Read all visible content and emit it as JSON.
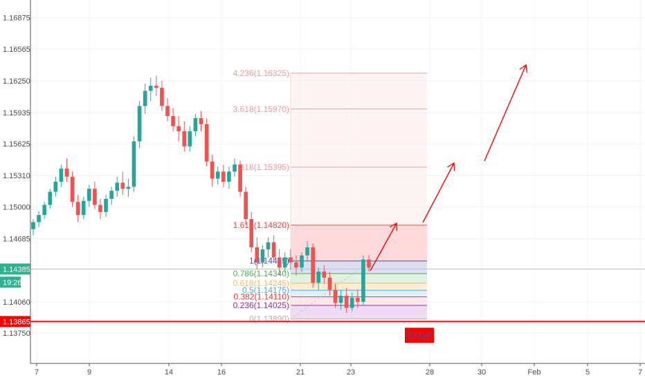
{
  "chart_data": {
    "type": "candlestick",
    "y_ticks": [
      "1.16875",
      "1.16565",
      "1.16250",
      "1.15935",
      "1.15625",
      "1.15310",
      "1.15000",
      "1.14685",
      "1.14385",
      "1.14060",
      "1.13865",
      "1.13750"
    ],
    "ylim": [
      1.1345,
      1.1705
    ],
    "x_ticks": [
      "7",
      "9",
      "14",
      "16",
      "21",
      "23",
      "28",
      "30",
      "Feb",
      "5",
      "7"
    ],
    "price_tag": {
      "value": "1.14385",
      "timer": "19:26",
      "color": "#2fb090"
    },
    "stop_line": {
      "value": "1.13865",
      "color": "#ff0000"
    },
    "stop_label": "STOP",
    "fib_levels": [
      {
        "ratio": 0,
        "price": 1.1389,
        "label": "0(1.13890)",
        "color": "#b0b0b0"
      },
      {
        "ratio": 0.236,
        "price": 1.14025,
        "label": "0.236(1.14025)",
        "color": "#9c27b0"
      },
      {
        "ratio": 0.382,
        "price": 1.1411,
        "label": "0.382(1.14110)",
        "color": "#e53935"
      },
      {
        "ratio": 0.5,
        "price": 1.14175,
        "label": "0.5(1.14175)",
        "color": "#42a5f5"
      },
      {
        "ratio": 0.618,
        "price": 1.14245,
        "label": "0.618(1.14245)",
        "color": "#ffb74d"
      },
      {
        "ratio": 0.786,
        "price": 1.1434,
        "label": "0.786(1.14340)",
        "color": "#4caf50"
      },
      {
        "ratio": 1,
        "price": 1.14465,
        "label": "1(1.14465)",
        "color": "#3f51b5"
      },
      {
        "ratio": 1.618,
        "price": 1.1482,
        "label": "1.618(1.14820)",
        "color": "#f44336"
      },
      {
        "ratio": 2.618,
        "price": 1.15395,
        "label": "2.618(1.15395)",
        "color": "#ef9a9a"
      },
      {
        "ratio": 3.618,
        "price": 1.1597,
        "label": "3.618(1.15970)",
        "color": "#ef9a9a"
      },
      {
        "ratio": 4.236,
        "price": 1.16325,
        "label": "4.236(1.16325)",
        "color": "#ef9a9a"
      }
    ],
    "candles": [
      [
        1.1478,
        1.1488,
        1.1472,
        1.1485
      ],
      [
        1.1485,
        1.1496,
        1.148,
        1.1492
      ],
      [
        1.1492,
        1.1505,
        1.1488,
        1.1502
      ],
      [
        1.1502,
        1.1518,
        1.1498,
        1.1515
      ],
      [
        1.1515,
        1.153,
        1.151,
        1.1525
      ],
      [
        1.1525,
        1.1542,
        1.152,
        1.1538
      ],
      [
        1.1538,
        1.1548,
        1.1525,
        1.153
      ],
      [
        1.153,
        1.1535,
        1.15,
        1.1505
      ],
      [
        1.1505,
        1.1512,
        1.1485,
        1.1492
      ],
      [
        1.1492,
        1.151,
        1.1488,
        1.1506
      ],
      [
        1.1506,
        1.1522,
        1.15,
        1.1518
      ],
      [
        1.1518,
        1.1525,
        1.1498,
        1.1502
      ],
      [
        1.1502,
        1.1508,
        1.1488,
        1.1495
      ],
      [
        1.1495,
        1.1512,
        1.149,
        1.1508
      ],
      [
        1.1508,
        1.152,
        1.1502,
        1.1516
      ],
      [
        1.1516,
        1.153,
        1.151,
        1.1524
      ],
      [
        1.1524,
        1.1535,
        1.1512,
        1.1518
      ],
      [
        1.1518,
        1.1528,
        1.151,
        1.152
      ],
      [
        1.152,
        1.157,
        1.1515,
        1.1565
      ],
      [
        1.1565,
        1.1605,
        1.1558,
        1.16
      ],
      [
        1.16,
        1.1622,
        1.1592,
        1.1615
      ],
      [
        1.1615,
        1.1628,
        1.1605,
        1.162
      ],
      [
        1.162,
        1.163,
        1.161,
        1.1618
      ],
      [
        1.1618,
        1.1625,
        1.1595,
        1.16
      ],
      [
        1.16,
        1.1608,
        1.1585,
        1.159
      ],
      [
        1.159,
        1.1598,
        1.1575,
        1.158
      ],
      [
        1.158,
        1.159,
        1.1565,
        1.1575
      ],
      [
        1.1575,
        1.1585,
        1.1555,
        1.156
      ],
      [
        1.156,
        1.158,
        1.1555,
        1.1575
      ],
      [
        1.1575,
        1.1592,
        1.157,
        1.1588
      ],
      [
        1.1588,
        1.1595,
        1.1575,
        1.1582
      ],
      [
        1.1582,
        1.1588,
        1.154,
        1.1545
      ],
      [
        1.1545,
        1.1552,
        1.152,
        1.1528
      ],
      [
        1.1528,
        1.154,
        1.1522,
        1.1535
      ],
      [
        1.1535,
        1.1542,
        1.152,
        1.1525
      ],
      [
        1.1525,
        1.154,
        1.1518,
        1.1535
      ],
      [
        1.1535,
        1.1548,
        1.153,
        1.1542
      ],
      [
        1.1542,
        1.1546,
        1.151,
        1.1515
      ],
      [
        1.1515,
        1.152,
        1.1482,
        1.1488
      ],
      [
        1.1488,
        1.1495,
        1.1455,
        1.146
      ],
      [
        1.146,
        1.147,
        1.1438,
        1.1445
      ],
      [
        1.1445,
        1.1462,
        1.144,
        1.1458
      ],
      [
        1.1458,
        1.147,
        1.145,
        1.1465
      ],
      [
        1.1465,
        1.1472,
        1.1445,
        1.145
      ],
      [
        1.145,
        1.1458,
        1.1432,
        1.144
      ],
      [
        1.144,
        1.1455,
        1.1435,
        1.145
      ],
      [
        1.145,
        1.1458,
        1.1438,
        1.1445
      ],
      [
        1.1445,
        1.1452,
        1.1432,
        1.144
      ],
      [
        1.144,
        1.1455,
        1.1436,
        1.1452
      ],
      [
        1.1452,
        1.1466,
        1.1446,
        1.146
      ],
      [
        1.146,
        1.1464,
        1.142,
        1.1425
      ],
      [
        1.1425,
        1.144,
        1.1418,
        1.1436
      ],
      [
        1.1436,
        1.1442,
        1.1424,
        1.143
      ],
      [
        1.143,
        1.1436,
        1.1412,
        1.1418
      ],
      [
        1.1418,
        1.1424,
        1.14,
        1.1405
      ],
      [
        1.1405,
        1.1418,
        1.1398,
        1.1412
      ],
      [
        1.1412,
        1.142,
        1.1395,
        1.14
      ],
      [
        1.14,
        1.1415,
        1.1397,
        1.141
      ],
      [
        1.141,
        1.1418,
        1.14,
        1.1406
      ],
      [
        1.1406,
        1.1452,
        1.1402,
        1.1448
      ],
      [
        1.1448,
        1.1452,
        1.1436,
        1.144
      ]
    ]
  },
  "annotations": [
    "target-arrow-1",
    "target-arrow-2",
    "target-arrow-3"
  ]
}
